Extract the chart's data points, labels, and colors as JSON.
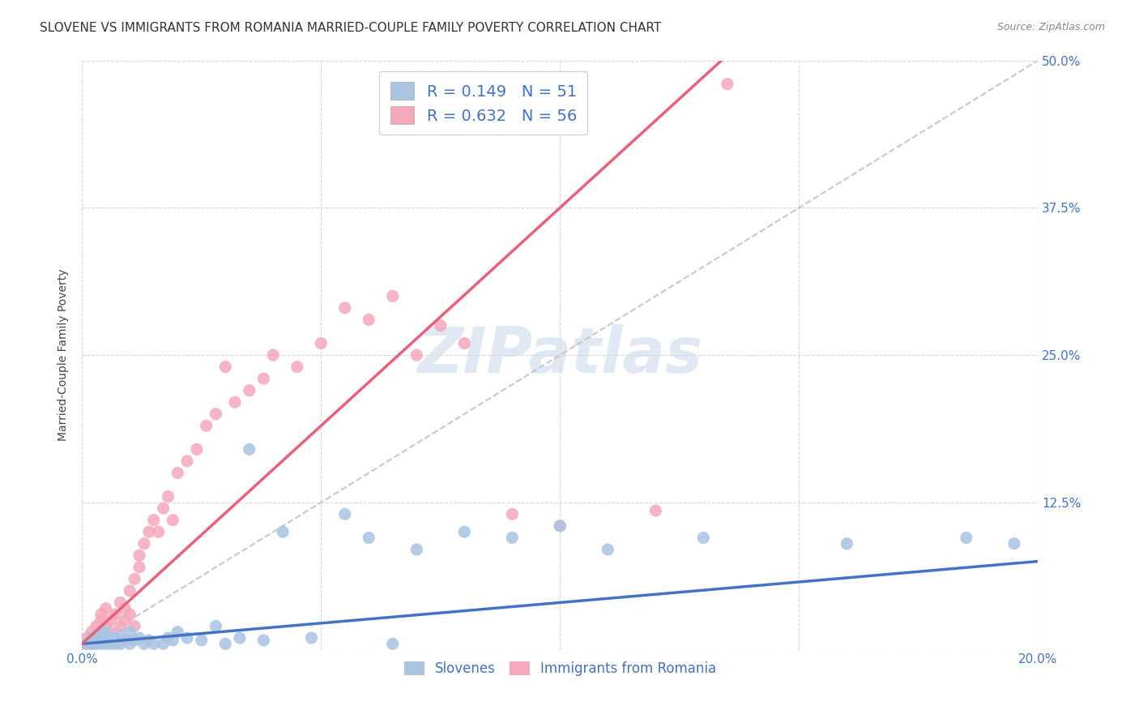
{
  "title": "SLOVENE VS IMMIGRANTS FROM ROMANIA MARRIED-COUPLE FAMILY POVERTY CORRELATION CHART",
  "source": "Source: ZipAtlas.com",
  "ylabel": "Married-Couple Family Poverty",
  "xlim": [
    0.0,
    0.2
  ],
  "ylim": [
    0.0,
    0.5
  ],
  "xticks": [
    0.0,
    0.05,
    0.1,
    0.15,
    0.2
  ],
  "yticks": [
    0.0,
    0.125,
    0.25,
    0.375,
    0.5
  ],
  "xticklabels": [
    "0.0%",
    "",
    "",
    "",
    "20.0%"
  ],
  "yticklabels": [
    "",
    "12.5%",
    "25.0%",
    "37.5%",
    "50.0%"
  ],
  "slovene_color": "#aac4e2",
  "romania_color": "#f5a8bc",
  "slovene_line_color": "#4472c4",
  "romania_line_color": "#e8607a",
  "diagonal_color": "#c8c8c8",
  "R_slovene": 0.149,
  "N_slovene": 51,
  "R_romania": 0.632,
  "N_romania": 56,
  "legend_labels": [
    "Slovenes",
    "Immigrants from Romania"
  ],
  "watermark": "ZIPatlas",
  "slovene_line_x0": 0.0,
  "slovene_line_y0": 0.005,
  "slovene_line_x1": 0.2,
  "slovene_line_y1": 0.075,
  "romania_line_x0": 0.0,
  "romania_line_y0": 0.005,
  "romania_line_x1": 0.1,
  "romania_line_y1": 0.375,
  "slovene_scatter_x": [
    0.001,
    0.002,
    0.002,
    0.003,
    0.003,
    0.003,
    0.004,
    0.004,
    0.004,
    0.005,
    0.005,
    0.005,
    0.006,
    0.006,
    0.007,
    0.007,
    0.008,
    0.008,
    0.009,
    0.01,
    0.01,
    0.011,
    0.012,
    0.013,
    0.014,
    0.015,
    0.017,
    0.018,
    0.019,
    0.02,
    0.022,
    0.025,
    0.028,
    0.03,
    0.033,
    0.035,
    0.038,
    0.042,
    0.048,
    0.055,
    0.06,
    0.065,
    0.07,
    0.08,
    0.09,
    0.1,
    0.11,
    0.13,
    0.16,
    0.185,
    0.195
  ],
  "slovene_scatter_y": [
    0.005,
    0.005,
    0.01,
    0.005,
    0.008,
    0.012,
    0.005,
    0.008,
    0.015,
    0.005,
    0.01,
    0.015,
    0.005,
    0.008,
    0.005,
    0.01,
    0.005,
    0.012,
    0.008,
    0.005,
    0.015,
    0.008,
    0.01,
    0.005,
    0.008,
    0.005,
    0.005,
    0.01,
    0.008,
    0.015,
    0.01,
    0.008,
    0.02,
    0.005,
    0.01,
    0.17,
    0.008,
    0.1,
    0.01,
    0.115,
    0.095,
    0.005,
    0.085,
    0.1,
    0.095,
    0.105,
    0.085,
    0.095,
    0.09,
    0.095,
    0.09
  ],
  "romania_scatter_x": [
    0.001,
    0.001,
    0.002,
    0.002,
    0.003,
    0.003,
    0.003,
    0.004,
    0.004,
    0.004,
    0.005,
    0.005,
    0.005,
    0.006,
    0.006,
    0.007,
    0.007,
    0.008,
    0.008,
    0.009,
    0.009,
    0.01,
    0.01,
    0.011,
    0.011,
    0.012,
    0.012,
    0.013,
    0.014,
    0.015,
    0.016,
    0.017,
    0.018,
    0.019,
    0.02,
    0.022,
    0.024,
    0.026,
    0.028,
    0.03,
    0.032,
    0.035,
    0.038,
    0.04,
    0.045,
    0.05,
    0.055,
    0.06,
    0.065,
    0.07,
    0.075,
    0.08,
    0.09,
    0.1,
    0.12,
    0.135
  ],
  "romania_scatter_y": [
    0.005,
    0.01,
    0.005,
    0.015,
    0.01,
    0.02,
    0.005,
    0.015,
    0.025,
    0.03,
    0.01,
    0.02,
    0.035,
    0.015,
    0.025,
    0.01,
    0.03,
    0.02,
    0.04,
    0.025,
    0.035,
    0.03,
    0.05,
    0.02,
    0.06,
    0.07,
    0.08,
    0.09,
    0.1,
    0.11,
    0.1,
    0.12,
    0.13,
    0.11,
    0.15,
    0.16,
    0.17,
    0.19,
    0.2,
    0.24,
    0.21,
    0.22,
    0.23,
    0.25,
    0.24,
    0.26,
    0.29,
    0.28,
    0.3,
    0.25,
    0.275,
    0.26,
    0.115,
    0.105,
    0.118,
    0.48
  ]
}
